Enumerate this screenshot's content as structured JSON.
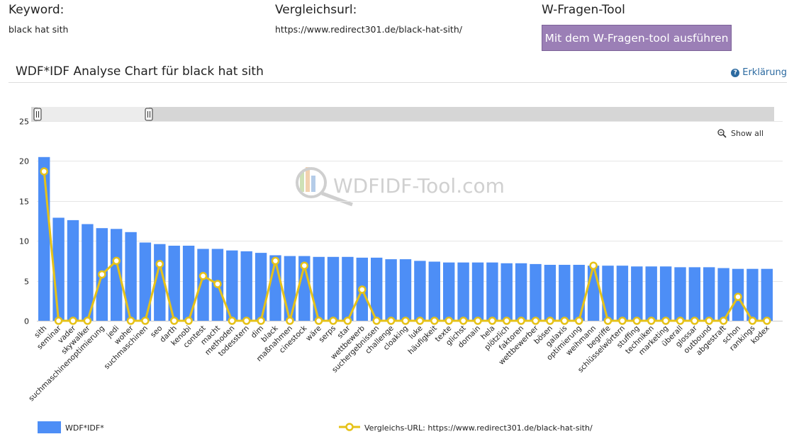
{
  "top": {
    "keyword": {
      "heading": "Keyword:",
      "value": "black hat sith"
    },
    "url": {
      "heading": "Vergleichsurl:",
      "value": "https://www.redirect301.de/black-hat-sith/"
    },
    "wfragen": {
      "heading": "W-Fragen-Tool",
      "button_label": "Mit dem W-Fragen-tool ausführen"
    }
  },
  "chart_header": {
    "title": "WDF*IDF Analyse Chart für black hat sith",
    "help_label": "Erklärung",
    "help_icon": "question-circle-icon"
  },
  "controls": {
    "show_all_label": "Show all",
    "show_all_icon": "magnifier-zoom-icon",
    "scroller_icon": "scrollbar-grip-icon"
  },
  "watermark": {
    "text": "WDFIDF-Tool.com"
  },
  "colors": {
    "bar": "#4d8ef6",
    "line": "#e6c218",
    "marker_fill": "#ffffff",
    "grid": "#e6e6e6",
    "button": "#9b7fb6"
  },
  "chart_data": {
    "type": "bar",
    "ylim": [
      0,
      25
    ],
    "yticks": [
      0,
      5,
      10,
      15,
      20,
      25
    ],
    "grid": true,
    "legend_position": "bottom",
    "categories": [
      "sith",
      "seminar",
      "vader",
      "skywalker",
      "suchmaschinenoptimierung",
      "jedi",
      "woher",
      "suchmaschinen",
      "seo",
      "darth",
      "kenobi",
      "contest",
      "macht",
      "methoden",
      "todesstern",
      "dim",
      "black",
      "maßnahmen",
      "cinestock",
      "wäre",
      "serps",
      "star",
      "wettbewerb",
      "suchergebnissen",
      "challenge",
      "cloaking",
      "luke",
      "häufigkeit",
      "texte",
      "glichst",
      "domain",
      "hela",
      "plötzlich",
      "faktoren",
      "wettbewerber",
      "bösen",
      "galaxis",
      "optimierung",
      "weihmann",
      "begriffe",
      "schlüsselwörtern",
      "stuffing",
      "techniken",
      "marketing",
      "überall",
      "glossar",
      "outbound",
      "abgestraft",
      "schon",
      "rankings",
      "kodex"
    ],
    "series": [
      {
        "name": "WDF*IDF*",
        "type": "bar",
        "values": [
          20.5,
          12.9,
          12.6,
          12.1,
          11.6,
          11.5,
          11.1,
          9.8,
          9.6,
          9.4,
          9.4,
          9.0,
          9.0,
          8.8,
          8.7,
          8.5,
          8.2,
          8.1,
          8.1,
          8.0,
          8.0,
          8.0,
          7.9,
          7.9,
          7.7,
          7.7,
          7.5,
          7.4,
          7.3,
          7.3,
          7.3,
          7.3,
          7.2,
          7.2,
          7.1,
          7.0,
          7.0,
          7.0,
          6.9,
          6.9,
          6.9,
          6.8,
          6.8,
          6.8,
          6.7,
          6.7,
          6.7,
          6.6,
          6.5,
          6.5,
          6.5
        ]
      },
      {
        "name": "Vergleichs-URL: https://www.redirect301.de/black-hat-sith/",
        "type": "line",
        "values": [
          18.7,
          0,
          0,
          0,
          5.8,
          7.5,
          0,
          0,
          7.1,
          0,
          0,
          5.6,
          4.6,
          0,
          0,
          0,
          7.5,
          0,
          6.9,
          0,
          0,
          0,
          3.9,
          0,
          0,
          0,
          0,
          0,
          0,
          0,
          0,
          0,
          0,
          0,
          0,
          0,
          0,
          0,
          6.9,
          0,
          0,
          0,
          0,
          0,
          0,
          0,
          0,
          0,
          3.0,
          0,
          0
        ]
      }
    ]
  }
}
